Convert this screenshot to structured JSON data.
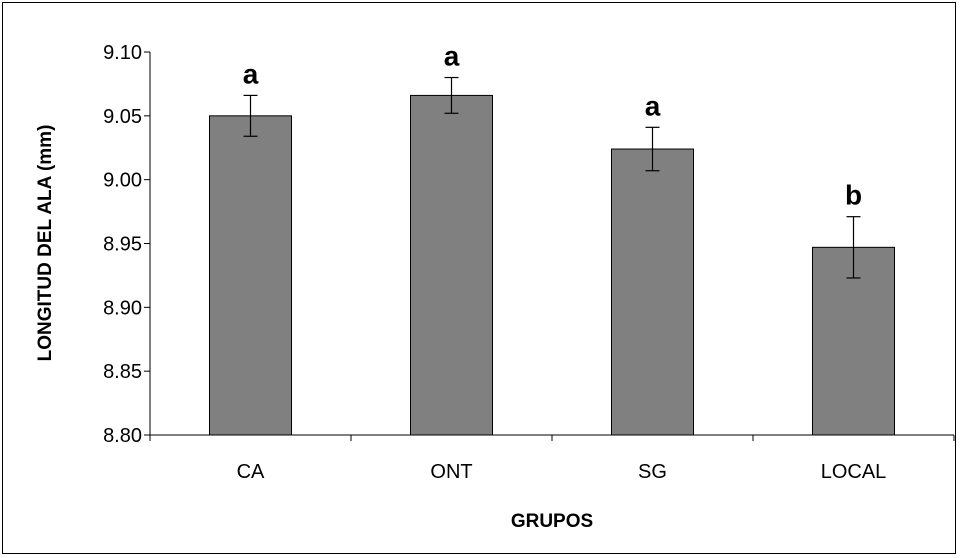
{
  "chart_data": {
    "type": "bar",
    "title": "",
    "xlabel": "GRUPOS",
    "ylabel": "LONGITUD DEL ALA (mm)",
    "ylim": [
      8.8,
      9.1
    ],
    "yticks": [
      "8.80",
      "8.85",
      "8.90",
      "8.95",
      "9.00",
      "9.05",
      "9.10"
    ],
    "ytick_values": [
      8.8,
      8.85,
      8.9,
      8.95,
      9.0,
      9.05,
      9.1
    ],
    "categories": [
      "CA",
      "ONT",
      "SG",
      "LOCAL"
    ],
    "values": [
      9.05,
      9.066,
      9.024,
      8.947
    ],
    "errors": [
      0.016,
      0.014,
      0.017,
      0.024
    ],
    "significance_labels": [
      "a",
      "a",
      "a",
      "b"
    ],
    "grid": false,
    "bar_color": "#808080"
  }
}
